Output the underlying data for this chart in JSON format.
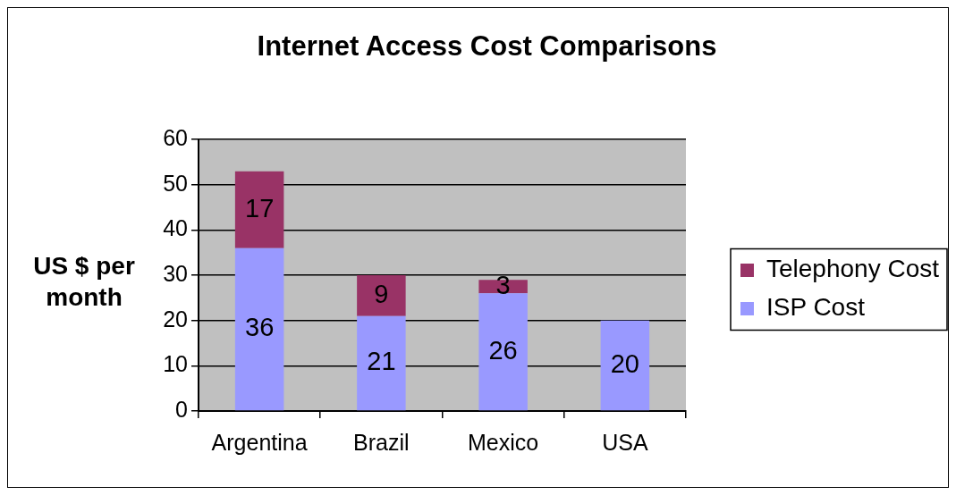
{
  "chart_data": {
    "type": "bar",
    "title": "Internet Access Cost Comparisons",
    "ylabel": "US $ per month",
    "categories": [
      "Argentina",
      "Brazil",
      "Mexico",
      "USA"
    ],
    "series": [
      {
        "name": "ISP Cost",
        "color": "#9999ff",
        "values": [
          36,
          21,
          26,
          20
        ]
      },
      {
        "name": "Telephony Cost",
        "color": "#993366",
        "values": [
          17,
          9,
          3,
          null
        ]
      }
    ],
    "stacked": true,
    "ylim": [
      0,
      60
    ],
    "yticks": [
      0,
      10,
      20,
      30,
      40,
      50,
      60
    ],
    "grid": "y",
    "legend": "right",
    "data_labels": true
  }
}
